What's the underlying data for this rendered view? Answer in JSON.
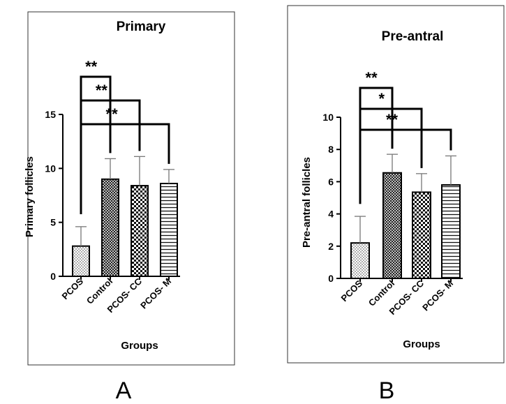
{
  "figure": {
    "panel_letters": [
      "A",
      "B"
    ]
  },
  "chart_data": [
    {
      "type": "bar",
      "title": "Primary",
      "xlabel": "Groups",
      "ylabel": "Primary follicles",
      "categories": [
        "PCOS",
        "Control",
        "PCOS- CC",
        "PCOS- M"
      ],
      "values": [
        2.8,
        9.0,
        8.4,
        8.6
      ],
      "error_plus": [
        1.8,
        1.9,
        2.7,
        1.3
      ],
      "patterns": [
        "dots",
        "crosshatch",
        "checker",
        "horizontal-lines"
      ],
      "ylim": [
        0,
        15
      ],
      "yticks": [
        0,
        5,
        10,
        15
      ],
      "significance": [
        {
          "from": "PCOS",
          "to": "Control",
          "label": "**"
        },
        {
          "from": "PCOS",
          "to": "PCOS- CC",
          "label": "**"
        },
        {
          "from": "PCOS",
          "to": "PCOS- M",
          "label": "**"
        }
      ],
      "grid": false,
      "legend": "none"
    },
    {
      "type": "bar",
      "title": "Pre-antral",
      "xlabel": "Groups",
      "ylabel": "Pre-antral follicles",
      "categories": [
        "PCOS",
        "Control",
        "PCOS- CC",
        "PCOS- M"
      ],
      "values": [
        2.2,
        6.55,
        5.35,
        5.8
      ],
      "error_plus": [
        1.65,
        1.15,
        1.15,
        1.8
      ],
      "patterns": [
        "dots",
        "crosshatch",
        "checker",
        "horizontal-lines"
      ],
      "ylim": [
        0,
        10
      ],
      "yticks": [
        0,
        2,
        4,
        6,
        8,
        10
      ],
      "significance": [
        {
          "from": "PCOS",
          "to": "Control",
          "label": "**"
        },
        {
          "from": "PCOS",
          "to": "PCOS- CC",
          "label": "*"
        },
        {
          "from": "PCOS",
          "to": "PCOS- M",
          "label": "**"
        }
      ],
      "grid": false,
      "legend": "none"
    }
  ]
}
